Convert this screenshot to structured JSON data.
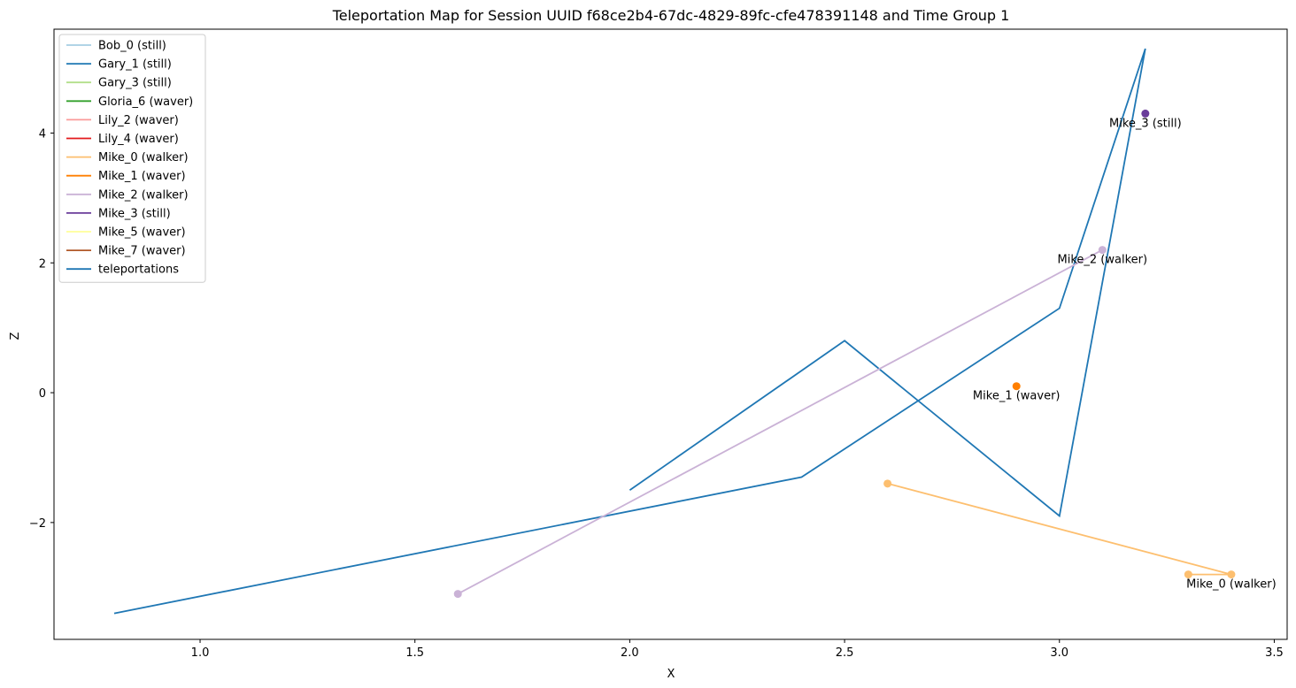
{
  "chart_data": {
    "type": "line",
    "title": "Teleportation Map for Session UUID f68ce2b4-67dc-4829-89fc-cfe478391148 and Time Group 1",
    "xlabel": "X",
    "ylabel": "Z",
    "xlim": [
      0.66,
      3.53
    ],
    "ylim": [
      -3.8,
      5.6
    ],
    "xticks": [
      1.0,
      1.5,
      2.0,
      2.5,
      3.0,
      3.5
    ],
    "xtick_labels": [
      "1.0",
      "1.5",
      "2.0",
      "2.5",
      "3.0",
      "3.5"
    ],
    "yticks": [
      -2,
      0,
      2,
      4
    ],
    "ytick_labels": [
      "−2",
      "0",
      "2",
      "4"
    ],
    "grid": false,
    "legend_position": "upper-left",
    "legend": [
      {
        "label": "Bob_0 (still)",
        "color": "#a6cee3"
      },
      {
        "label": "Gary_1 (still)",
        "color": "#1f78b4"
      },
      {
        "label": "Gary_3 (still)",
        "color": "#b2df8a"
      },
      {
        "label": "Gloria_6 (waver)",
        "color": "#33a02c"
      },
      {
        "label": "Lily_2 (waver)",
        "color": "#fb9a99"
      },
      {
        "label": "Lily_4 (waver)",
        "color": "#e31a1c"
      },
      {
        "label": "Mike_0 (walker)",
        "color": "#fdbf6f"
      },
      {
        "label": "Mike_1 (waver)",
        "color": "#ff7f00"
      },
      {
        "label": "Mike_2 (walker)",
        "color": "#cab2d6"
      },
      {
        "label": "Mike_3 (still)",
        "color": "#6a3d9a"
      },
      {
        "label": "Mike_5 (waver)",
        "color": "#ffff99"
      },
      {
        "label": "Mike_7 (waver)",
        "color": "#b15928"
      },
      {
        "label": "teleportations",
        "color": "#1f77b4"
      }
    ],
    "series": [
      {
        "name": "teleportations",
        "color": "#1f77b4",
        "markers": false,
        "points": [
          [
            0.8,
            -3.4
          ],
          [
            2.4,
            -1.3
          ],
          [
            3.0,
            1.3
          ],
          [
            3.2,
            5.3
          ],
          [
            3.0,
            -1.9
          ],
          [
            2.5,
            0.8
          ],
          [
            2.0,
            -1.5
          ]
        ]
      },
      {
        "name": "Mike_0 (walker)",
        "color": "#fdbf6f",
        "markers": true,
        "points": [
          [
            2.6,
            -1.4
          ],
          [
            3.4,
            -2.8
          ],
          [
            3.3,
            -2.8
          ]
        ],
        "label": "Mike_0 (walker)",
        "label_at": [
          3.4,
          -2.8
        ]
      },
      {
        "name": "Mike_1 (waver)",
        "color": "#ff7f00",
        "markers": true,
        "points": [
          [
            2.9,
            0.1
          ]
        ],
        "label": "Mike_1 (waver)",
        "label_at": [
          2.9,
          0.1
        ]
      },
      {
        "name": "Mike_2 (walker)",
        "color": "#cab2d6",
        "markers": true,
        "points": [
          [
            1.6,
            -3.1
          ],
          [
            3.1,
            2.2
          ]
        ],
        "label": "Mike_2 (walker)",
        "label_at": [
          3.1,
          2.2
        ]
      },
      {
        "name": "Mike_3 (still)",
        "color": "#6a3d9a",
        "markers": true,
        "points": [
          [
            3.2,
            4.3
          ]
        ],
        "label": "Mike_3 (still)",
        "label_at": [
          3.2,
          4.3
        ]
      }
    ]
  }
}
